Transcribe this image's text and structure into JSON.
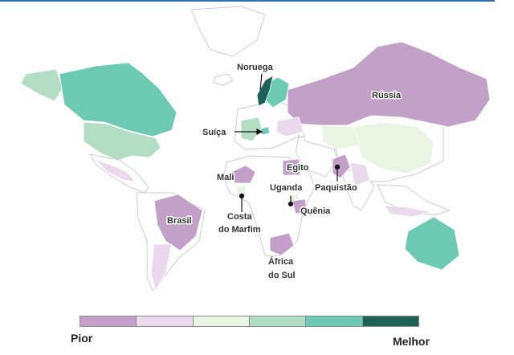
{
  "map": {
    "labels": {
      "noruega": "Noruega",
      "russia": "Rússia",
      "suica": "Suíça",
      "egito": "Egito",
      "mali": "Mali",
      "uganda": "Uganda",
      "paquistao": "Paquistão",
      "brasil": "Brasil",
      "costa_1": "Costa",
      "costa_2": "do Marfim",
      "quenia": "Quênia",
      "africa_1": "África",
      "africa_2": "do Sul"
    },
    "scale_colors": [
      "#c2a0c8",
      "#ead8ec",
      "#eaf4e3",
      "#b3ddc5",
      "#6cc9b2",
      "#1d6157"
    ],
    "country_colors": {
      "russia": "#c2a0c8",
      "brasil": "#c2a0c8",
      "egito": "#c2a0c8",
      "mali": "#c2a0c8",
      "paquistao": "#c2a0c8",
      "africa_do_sul": "#c2a0c8",
      "quenia": "#c2a0c8",
      "canada": "#6cc9b2",
      "australia": "#6cc9b2",
      "noruega": "#1d6157",
      "suica": "#6cc9b2",
      "eua": "#b3ddc5",
      "china": "#eaf4e3"
    }
  },
  "legend": {
    "min_label": "Pior",
    "max_label": "Melhor"
  }
}
